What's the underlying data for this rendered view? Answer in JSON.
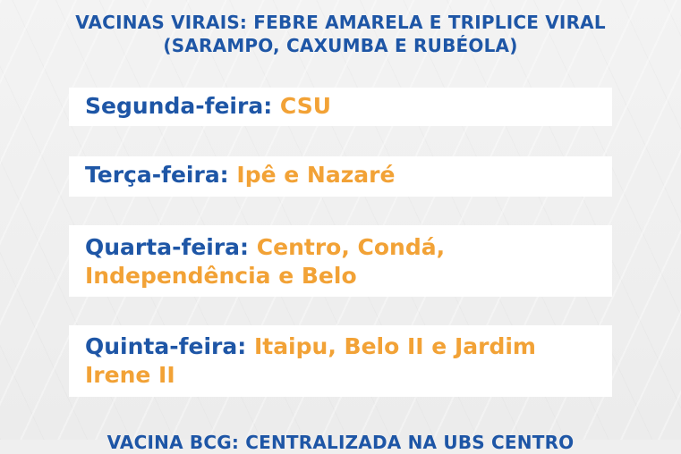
{
  "heading": {
    "line1": "VACINAS VIRAIS: FEBRE AMARELA E TRIPLICE VIRAL",
    "line2": "(SARAMPO, CAXUMBA E RUBÉOLA)"
  },
  "schedule": [
    {
      "day": "Segunda-feira:",
      "places": "CSU"
    },
    {
      "day": "Terça-feira:",
      "places": "Ipê e Nazaré"
    },
    {
      "day": "Quarta-feira:",
      "places": "Centro, Condá, Independência e Belo"
    },
    {
      "day": "Quinta-feira:",
      "places": "Itaipu, Belo II e Jardim Irene II"
    }
  ],
  "footer": {
    "text": "VACINA BCG: CENTRALIZADA NA UBS CENTRO"
  },
  "colors": {
    "blue": "#1e56a6",
    "orange": "#f2a236",
    "card_bg": "#ffffff",
    "page_bg": "#efefef"
  }
}
